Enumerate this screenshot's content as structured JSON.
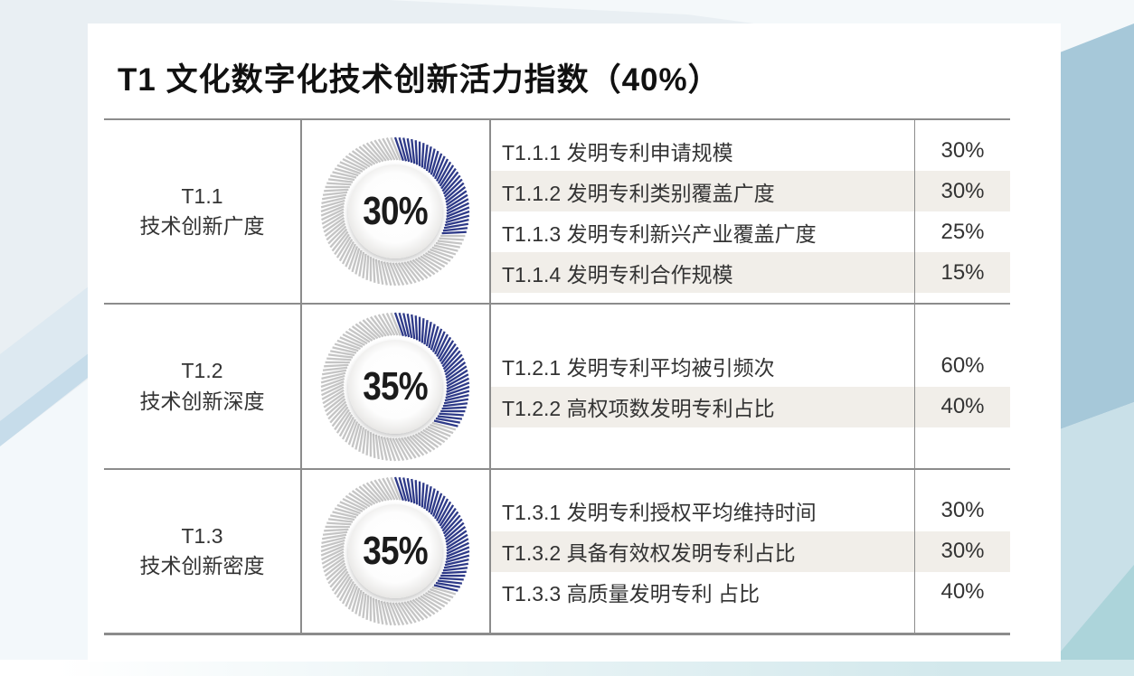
{
  "slide": {
    "title": "T1 文化数字化技术创新活力指数（40%）"
  },
  "colors": {
    "donut_blue": "#2e3a88",
    "donut_tick_gray": "#c5c5c5",
    "row_shade": "#f1eee9",
    "table_line_gray": "#8c8c8c",
    "bg_right_blue": "#a6c8d9",
    "bg_teal": "#acd4da"
  },
  "blocks": [
    {
      "code": "T1.1",
      "name": "技术创新广度",
      "donut": {
        "value": 30,
        "label": "30%"
      },
      "indicators": [
        {
          "name": "T1.1.1 发明专利申请规模",
          "weight": "30%",
          "shaded": false
        },
        {
          "name": "T1.1.2 发明专利类别覆盖广度",
          "weight": "30%",
          "shaded": true
        },
        {
          "name": "T1.1.3 发明专利新兴产业覆盖广度",
          "weight": "25%",
          "shaded": false
        },
        {
          "name": "T1.1.4 发明专利合作规模",
          "weight": "15%",
          "shaded": true
        }
      ]
    },
    {
      "code": "T1.2",
      "name": "技术创新深度",
      "donut": {
        "value": 35,
        "label": "35%"
      },
      "indicators": [
        {
          "name": "T1.2.1 发明专利平均被引频次",
          "weight": "60%",
          "shaded": false
        },
        {
          "name": "T1.2.2 高权项数发明专利占比",
          "weight": "40%",
          "shaded": true
        }
      ]
    },
    {
      "code": "T1.3",
      "name": "技术创新密度",
      "donut": {
        "value": 35,
        "label": "35%"
      },
      "indicators": [
        {
          "name": "T1.3.1 发明专利授权平均维持时间",
          "weight": "30%",
          "shaded": false
        },
        {
          "name": "T1.3.2 具备有效权发明专利占比",
          "weight": "30%",
          "shaded": true
        },
        {
          "name": "T1.3.3 高质量发明专利 占比",
          "weight": "40%",
          "shaded": false
        }
      ]
    }
  ],
  "chart_data": [
    {
      "type": "pie",
      "variant": "donut-gauge",
      "title": "T1.1 技术创新广度",
      "center_label": "30%",
      "values": [
        30,
        70
      ],
      "colors": [
        "#2e3a88",
        "#c5c5c5"
      ],
      "start": "top",
      "direction": "clockwise"
    },
    {
      "type": "pie",
      "variant": "donut-gauge",
      "title": "T1.2 技术创新深度",
      "center_label": "35%",
      "values": [
        35,
        65
      ],
      "colors": [
        "#2e3a88",
        "#c5c5c5"
      ],
      "start": "top",
      "direction": "clockwise"
    },
    {
      "type": "pie",
      "variant": "donut-gauge",
      "title": "T1.3 技术创新密度",
      "center_label": "35%",
      "values": [
        35,
        65
      ],
      "colors": [
        "#2e3a88",
        "#c5c5c5"
      ],
      "start": "top",
      "direction": "clockwise"
    }
  ]
}
